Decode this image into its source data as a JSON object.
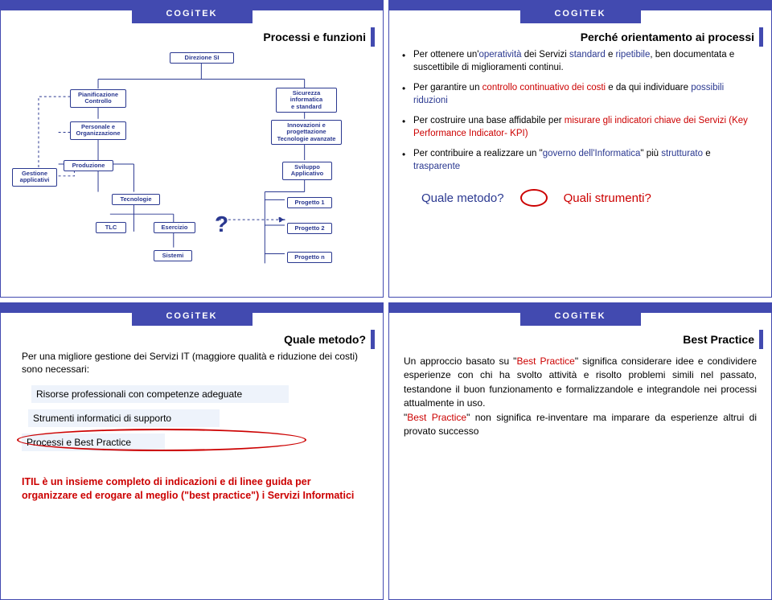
{
  "logo": "COGiTEK",
  "slide1": {
    "title": "Processi e funzioni",
    "nodes": {
      "direzione": "Direzione SI",
      "pianif": "Pianificazione\nControllo",
      "personale": "Personale e\nOrganizzazione",
      "gestione": "Gestione\napplicativi",
      "produzione": "Produzione",
      "tecnologie": "Tecnologie",
      "tlc": "TLC",
      "esercizio": "Esercizio",
      "sistemi": "Sistemi",
      "sicurezza": "Sicurezza\ninformatica\ne standard",
      "innovazioni": "Innovazioni e\nprogettazione\nTecnologie avanzate",
      "sviluppo": "Sviluppo\nApplicativo",
      "progetto1": "Progetto 1",
      "progetto2": "Progetto 2",
      "progetton": "Progetto n"
    },
    "qmark": "?"
  },
  "slide2": {
    "title": "Perché orientamento ai processi",
    "b1_pre": "Per ottenere un'",
    "b1_hl1": "operatività",
    "b1_mid1": " dei Servizi ",
    "b1_hl2": "standard",
    "b1_mid2": " e ",
    "b1_hl3": "ripetibile",
    "b1_post": ", ben documentata e suscettibile di miglioramenti continui.",
    "b2_pre": "Per garantire un ",
    "b2_hl": "controllo continuativo dei costi",
    "b2_post": " e da qui individuare ",
    "b2_hl2": " possibili riduzioni",
    "b3_pre": "Per costruire una base affidabile per ",
    "b3_hl": "misurare gli indicatori chiave dei Servizi (Key Performance Indicator- KPI)",
    "b4_pre": "Per contribuire a realizzare un \"",
    "b4_hl": "governo dell'Informatica",
    "b4_mid": "\" più ",
    "b4_hl2": "strutturato",
    "b4_mid2": " e ",
    "b4_hl3": "trasparente",
    "qm": "Quale metodo?",
    "qs": "Quali strumenti?"
  },
  "slide3": {
    "title": "Quale metodo?",
    "intro": "Per una migliore gestione dei Servizi IT (maggiore qualità e riduzione dei costi) sono necessari:",
    "l1": "Risorse professionali con competenze adeguate",
    "l2": "Strumenti informatici di supporto",
    "l3": "Processi e Best Practice",
    "itil": "ITIL è un insieme completo di indicazioni e di linee guida per organizzare ed erogare al meglio (\"best practice\") i Servizi Informatici"
  },
  "slide4": {
    "title": "Best Practice",
    "p1a": "Un approccio basato su \"",
    "p1b": "Best Practice",
    "p1c": "\" significa considerare idee e condividere esperienze con chi ha svolto attività e risolto problemi simili nel passato, testandone il buon funzionamento e formalizzandole e integrandole nei processi attualmente in uso.",
    "p2a": "\"",
    "p2b": "Best Practice",
    "p2c": "\" non significa re-inventare ma imparare da esperienze altrui di provato successo"
  },
  "colors": {
    "navy": "#2a3890",
    "red": "#cc0000",
    "bar": "#424ab0",
    "hl_bg": "#eef3fb"
  }
}
